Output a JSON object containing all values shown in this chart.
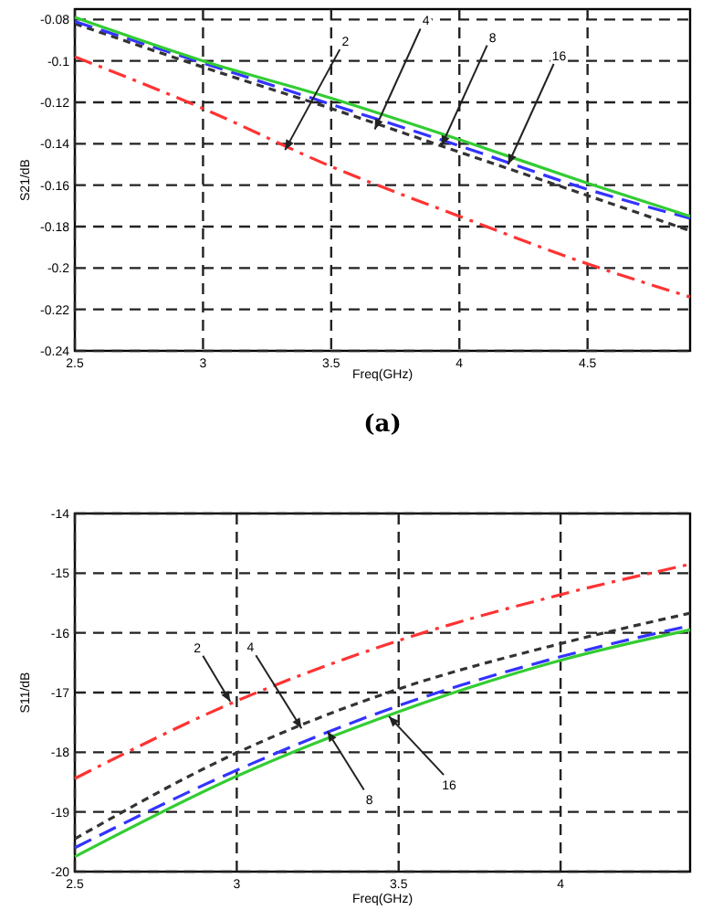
{
  "chart_data": [
    {
      "type": "line",
      "xlabel": "Freq(GHz)",
      "ylabel": "S21/dB",
      "xlim": [
        2.5,
        4.9
      ],
      "xticks": [
        2.5,
        3,
        3.5,
        4,
        4.5
      ],
      "ylim": [
        -0.24,
        -0.075
      ],
      "yticks": [
        -0.24,
        -0.22,
        -0.2,
        -0.18,
        -0.16,
        -0.14,
        -0.12,
        -0.1,
        -0.08
      ],
      "grid": true,
      "x": [
        2.5,
        3,
        3.5,
        4,
        4.5,
        4.9
      ],
      "series": [
        {
          "color": "#ff3333",
          "line_style": "dashed",
          "values": [
            -0.098,
            -0.123,
            -0.151,
            -0.175,
            -0.198,
            -0.214
          ]
        },
        {
          "color": "#333333",
          "line_style": "dashed",
          "values": [
            -0.082,
            -0.103,
            -0.123,
            -0.144,
            -0.165,
            -0.182
          ]
        },
        {
          "color": "#3333ff",
          "line_style": "dashed",
          "values": [
            -0.081,
            -0.101,
            -0.121,
            -0.141,
            -0.162,
            -0.176
          ]
        },
        {
          "color": "#33cc33",
          "line_style": "solid",
          "values": [
            -0.079,
            -0.1,
            -0.118,
            -0.138,
            -0.159,
            -0.175
          ]
        }
      ],
      "annotations": [
        {
          "text": "2",
          "x": 3.32,
          "y": -0.143
        },
        {
          "text": "4",
          "x": 3.67,
          "y": -0.133
        },
        {
          "text": "8",
          "x": 3.93,
          "y": -0.141
        },
        {
          "text": "16",
          "x": 4.19,
          "y": -0.15
        },
        "(a)"
      ]
    },
    {
      "type": "line",
      "xlabel": "Freq(GHz)",
      "ylabel": "S11/dB",
      "xlim": [
        2.5,
        4.4
      ],
      "xticks": [
        2.5,
        3,
        3.5,
        4
      ],
      "ylim": [
        -20,
        -14
      ],
      "yticks": [
        -20,
        -19,
        -18,
        -17,
        -16,
        -15,
        -14
      ],
      "grid": true,
      "x": [
        2.5,
        3,
        3.5,
        4,
        4.4
      ],
      "series": [
        {
          "color": "#ff3333",
          "line_style": "dashed",
          "values": [
            -18.44,
            -17.14,
            -16.13,
            -15.36,
            -14.85
          ]
        },
        {
          "color": "#333333",
          "line_style": "dashed",
          "values": [
            -19.45,
            -18.01,
            -16.94,
            -16.18,
            -15.67
          ]
        },
        {
          "color": "#3333ff",
          "line_style": "dashed",
          "values": [
            -19.6,
            -18.3,
            -17.22,
            -16.4,
            -15.88
          ]
        },
        {
          "color": "#33cc33",
          "line_style": "solid",
          "values": [
            -19.75,
            -18.4,
            -17.32,
            -16.46,
            -15.95
          ]
        }
      ],
      "annotations": [
        {
          "text": "2",
          "x": 2.98,
          "y": -17.15
        },
        {
          "text": "4",
          "x": 3.2,
          "y": -17.6
        },
        {
          "text": "8",
          "x": 3.28,
          "y": -17.65
        },
        {
          "text": "16",
          "x": 3.47,
          "y": -17.4
        }
      ]
    }
  ]
}
